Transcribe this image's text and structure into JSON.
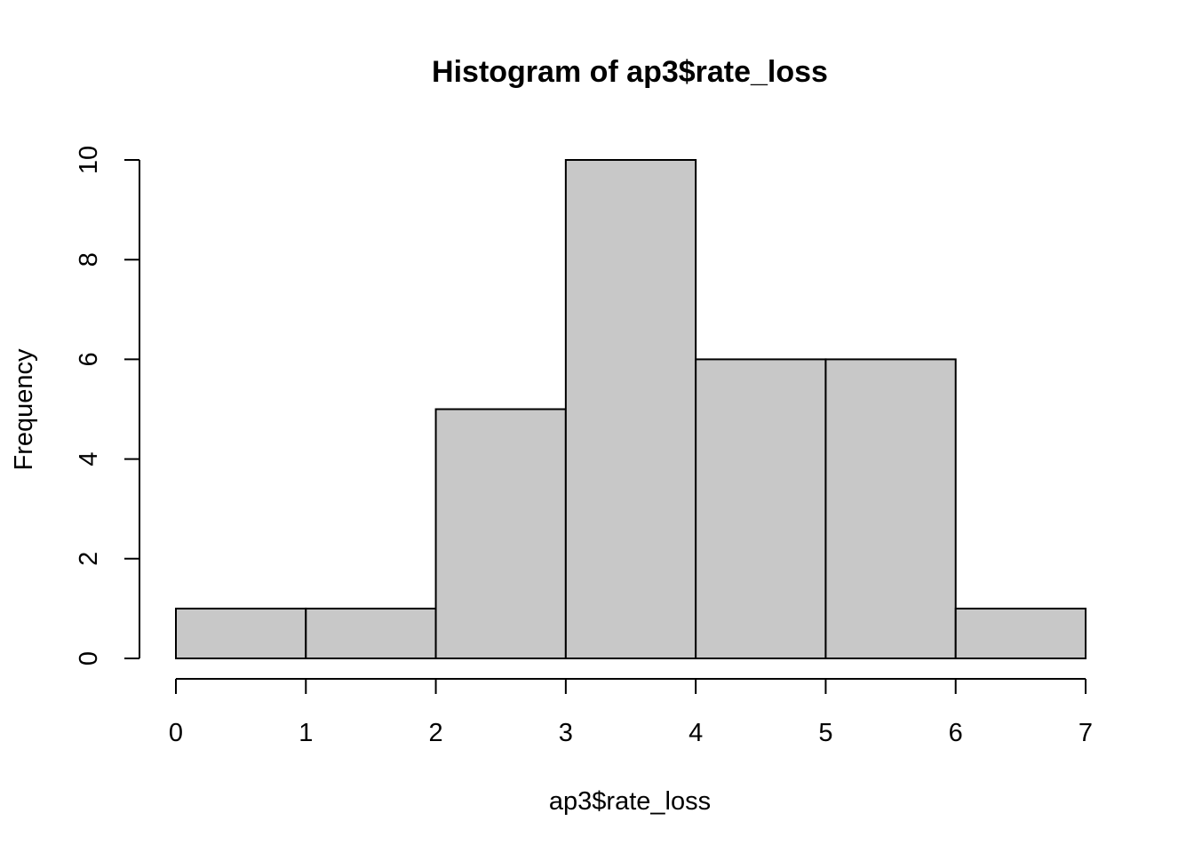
{
  "chart_data": {
    "type": "bar",
    "title": "Histogram of ap3$rate_loss",
    "xlabel": "ap3$rate_loss",
    "ylabel": "Frequency",
    "bins": [
      {
        "from": 0,
        "to": 1,
        "count": 1
      },
      {
        "from": 1,
        "to": 2,
        "count": 1
      },
      {
        "from": 2,
        "to": 3,
        "count": 5
      },
      {
        "from": 3,
        "to": 4,
        "count": 10
      },
      {
        "from": 4,
        "to": 5,
        "count": 6
      },
      {
        "from": 5,
        "to": 6,
        "count": 6
      },
      {
        "from": 6,
        "to": 7,
        "count": 1
      }
    ],
    "xlim": [
      0,
      7
    ],
    "ylim": [
      0,
      10
    ],
    "x_ticks": [
      "0",
      "1",
      "2",
      "3",
      "4",
      "5",
      "6",
      "7"
    ],
    "y_ticks": [
      "0",
      "2",
      "4",
      "6",
      "8",
      "10"
    ],
    "bar_color": "#c8c8c8",
    "grid": false
  }
}
